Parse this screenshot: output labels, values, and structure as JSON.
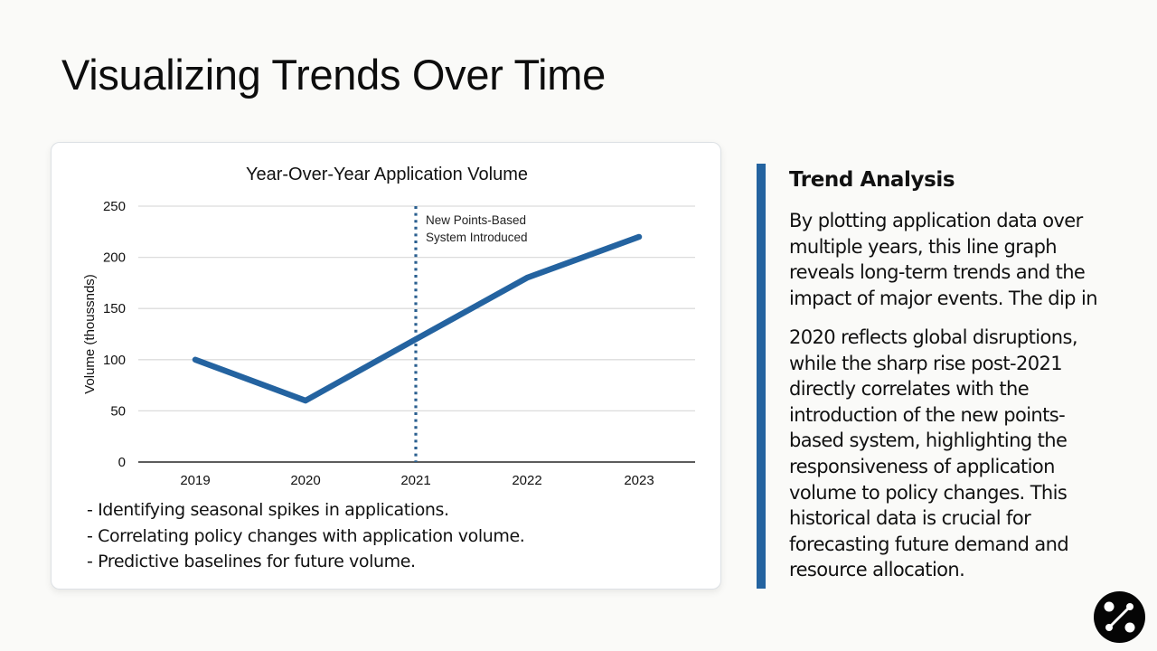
{
  "slide": {
    "title": "Visualizing Trends Over Time"
  },
  "chart_card": {
    "title": "Year-Over-Year Application Volume",
    "annotation_line1": "New Points-Based",
    "annotation_line2": "System Introduced",
    "bullets": [
      "- Identifying seasonal spikes in applications.",
      "- Correlating policy changes with application volume.",
      "- Predictive baselines for future volume."
    ]
  },
  "side_panel": {
    "title": "Trend Analysis",
    "paragraph1_lines": [
      "By plotting application data over",
      "multiple years, this line graph",
      "reveals long-term trends and the",
      "impact of major events. The dip in"
    ],
    "paragraph2_lines": [
      "2020 reflects global disruptions,",
      "while the sharp rise post-2021",
      "directly correlates with the",
      "introduction of the new points-",
      "based system, highlighting the",
      "responsiveness of application",
      "volume to policy changes. This",
      "historical data is crucial for",
      "forecasting future demand and",
      "resource allocation."
    ]
  },
  "colors": {
    "line": "#2463a0",
    "accent_bar": "#2463a0",
    "annotation_line": "#2a5f8f",
    "grid": "#dcdcdc",
    "axis": "#444444",
    "background": "#fafaf8"
  },
  "logo": {
    "icon": "link-nodes-icon"
  },
  "chart_data": {
    "type": "line",
    "title": "Year-Over-Year Application Volume",
    "xlabel": "",
    "ylabel": "Volume (thoussnds)",
    "categories": [
      "2019",
      "2020",
      "2021",
      "2022",
      "2023"
    ],
    "series": [
      {
        "name": "Application Volume",
        "values": [
          100,
          60,
          120,
          180,
          220
        ]
      }
    ],
    "ylim": [
      0,
      250
    ],
    "yticks": [
      0,
      50,
      100,
      150,
      200,
      250
    ],
    "grid": true,
    "legend": "none",
    "annotations": [
      {
        "type": "vertical-dotted-line",
        "x": "2021",
        "text": "New Points-Based System Introduced"
      }
    ]
  }
}
